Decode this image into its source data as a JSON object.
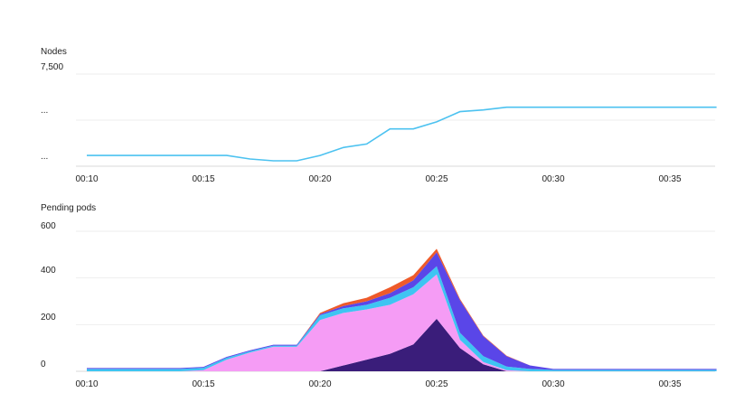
{
  "chart_data": [
    {
      "type": "line",
      "title": "Nodes",
      "x_tick_labels": [
        "00:10",
        "00:15",
        "00:20",
        "00:25",
        "00:30",
        "00:35"
      ],
      "y_tick_labels": [
        "7,500",
        "...",
        "..."
      ],
      "ylim": [
        5500,
        7500
      ],
      "grid": true,
      "colors": {
        "line": "#4cc2f0"
      },
      "x": [
        "00:10",
        "00:11",
        "00:12",
        "00:13",
        "00:14",
        "00:15",
        "00:16",
        "00:17",
        "00:18",
        "00:19",
        "00:20",
        "00:21",
        "00:22",
        "00:23",
        "00:24",
        "00:25",
        "00:26",
        "00:27",
        "00:28",
        "00:29",
        "00:30",
        "00:31",
        "00:32",
        "00:33",
        "00:34",
        "00:35",
        "00:36",
        "00:37"
      ],
      "series": [
        {
          "values": [
            5660,
            5660,
            5660,
            5660,
            5660,
            5660,
            5660,
            5580,
            5540,
            5540,
            5660,
            5840,
            5920,
            6260,
            6260,
            6420,
            6650,
            6690,
            6750,
            6750,
            6750,
            6750,
            6750,
            6750,
            6750,
            6750,
            6750,
            6750
          ]
        }
      ]
    },
    {
      "type": "area",
      "title": "Pending pods",
      "stacked": true,
      "x_tick_labels": [
        "00:10",
        "00:15",
        "00:20",
        "00:25",
        "00:30",
        "00:35"
      ],
      "y_tick_labels": [
        "600",
        "400",
        "200",
        "0"
      ],
      "ylim": [
        0,
        600
      ],
      "grid": true,
      "x": [
        "00:10",
        "00:11",
        "00:12",
        "00:13",
        "00:14",
        "00:15",
        "00:16",
        "00:17",
        "00:18",
        "00:19",
        "00:20",
        "00:21",
        "00:22",
        "00:23",
        "00:24",
        "00:25",
        "00:26",
        "00:27",
        "00:28",
        "00:29",
        "00:30",
        "00:31",
        "00:32",
        "00:33",
        "00:34",
        "00:35",
        "00:36",
        "00:37"
      ],
      "series": [
        {
          "color": "#3a1d7a",
          "values": [
            0,
            0,
            0,
            0,
            0,
            0,
            0,
            0,
            0,
            0,
            0,
            25,
            50,
            75,
            115,
            225,
            100,
            30,
            0,
            0,
            0,
            0,
            0,
            0,
            0,
            0,
            0,
            0
          ]
        },
        {
          "color": "#f59cf5",
          "values": [
            0,
            0,
            0,
            0,
            0,
            5,
            50,
            80,
            105,
            105,
            220,
            225,
            215,
            210,
            215,
            190,
            35,
            10,
            5,
            0,
            0,
            0,
            0,
            0,
            0,
            0,
            0,
            0
          ]
        },
        {
          "color": "#3ec4f2",
          "values": [
            10,
            10,
            10,
            10,
            10,
            10,
            8,
            6,
            5,
            5,
            20,
            20,
            20,
            30,
            30,
            35,
            30,
            25,
            15,
            10,
            6,
            6,
            6,
            6,
            6,
            6,
            6,
            6
          ]
        },
        {
          "color": "#5a46e8",
          "values": [
            4,
            4,
            4,
            4,
            4,
            4,
            4,
            4,
            4,
            4,
            5,
            10,
            15,
            20,
            30,
            60,
            140,
            85,
            45,
            15,
            4,
            4,
            4,
            4,
            4,
            4,
            4,
            4
          ]
        },
        {
          "color": "#ee5a2a",
          "values": [
            0,
            0,
            0,
            0,
            0,
            0,
            0,
            0,
            0,
            0,
            5,
            12,
            15,
            25,
            22,
            15,
            5,
            3,
            2,
            0,
            0,
            0,
            0,
            0,
            0,
            0,
            0,
            0
          ]
        }
      ]
    }
  ]
}
